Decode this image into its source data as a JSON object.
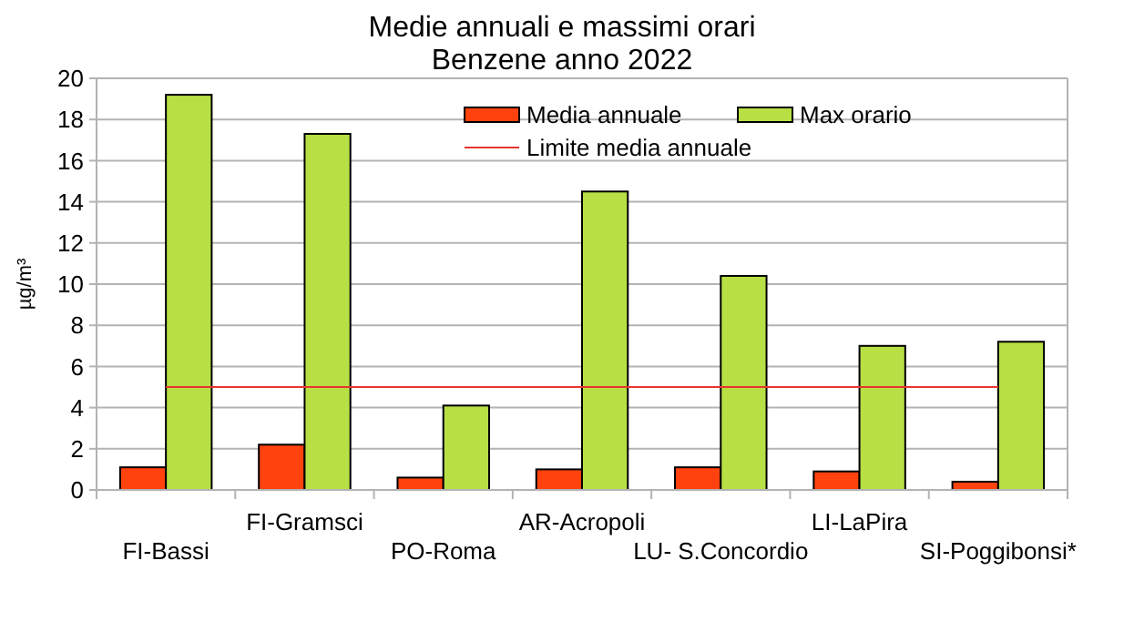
{
  "chart_data": {
    "type": "bar",
    "title": "Medie annuali e massimi orari",
    "subtitle": "Benzene anno 2022",
    "ylabel": "µg/m³",
    "categories": [
      "FI-Bassi",
      "FI-Gramsci",
      "PO-Roma",
      "AR-Acropoli",
      "LU- S.Concordio",
      "LI-LaPira",
      "SI-Poggibonsi*"
    ],
    "series": [
      {
        "name": "Media annuale",
        "color": "#ff420e",
        "values": [
          1.1,
          2.2,
          0.6,
          1.0,
          1.1,
          0.9,
          0.4
        ]
      },
      {
        "name": "Max orario",
        "color": "#b8e045",
        "values": [
          19.2,
          17.3,
          4.1,
          14.5,
          10.4,
          7.0,
          7.2
        ]
      }
    ],
    "ref_lines": [
      {
        "axis": "y",
        "value": 5,
        "label": "Limite media annuale",
        "color": "#e8352e"
      }
    ],
    "ylim": [
      0,
      20
    ],
    "yticks": [
      0,
      2,
      4,
      6,
      8,
      10,
      12,
      14,
      16,
      18,
      20
    ],
    "grid": "y",
    "legend": "top right"
  }
}
